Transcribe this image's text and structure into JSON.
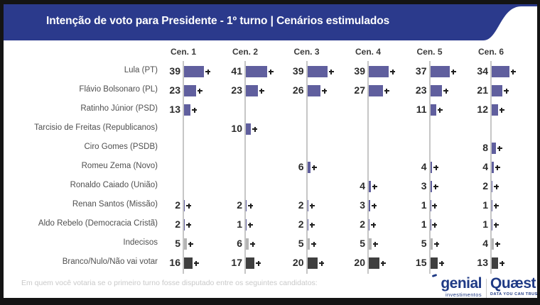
{
  "header": {
    "title": "Intenção de voto para Presidente - 1º turno | Cenários estimulados",
    "background_color": "#2b3a8c"
  },
  "chart_data": {
    "type": "bar",
    "orientation": "horizontal",
    "unit": "%",
    "columns": [
      "Cen. 1",
      "Cen. 2",
      "Cen. 3",
      "Cen. 4",
      "Cen. 5",
      "Cen. 6"
    ],
    "rows": [
      {
        "label": "Lula (PT)",
        "values": [
          39,
          41,
          39,
          39,
          37,
          34
        ],
        "color": "#605f9e"
      },
      {
        "label": "Flávio Bolsonaro (PL)",
        "values": [
          23,
          23,
          26,
          27,
          23,
          21
        ],
        "color": "#605f9e"
      },
      {
        "label": "Ratinho Júnior (PSD)",
        "values": [
          13,
          null,
          null,
          null,
          11,
          12
        ],
        "color": "#605f9e"
      },
      {
        "label": "Tarcisio de Freitas (Republicanos)",
        "values": [
          null,
          10,
          null,
          null,
          null,
          null
        ],
        "color": "#605f9e"
      },
      {
        "label": "Ciro Gomes (PSDB)",
        "values": [
          null,
          null,
          null,
          null,
          null,
          8
        ],
        "color": "#605f9e"
      },
      {
        "label": "Romeu Zema (Novo)",
        "values": [
          null,
          null,
          6,
          null,
          4,
          4
        ],
        "color": "#605f9e"
      },
      {
        "label": "Ronaldo Caiado (União)",
        "values": [
          null,
          null,
          null,
          4,
          3,
          2
        ],
        "color": "#605f9e"
      },
      {
        "label": "Renan Santos (Missão)",
        "values": [
          2,
          2,
          2,
          3,
          1,
          1
        ],
        "color": "#605f9e"
      },
      {
        "label": "Aldo Rebelo (Democracia Cristã)",
        "values": [
          2,
          1,
          2,
          2,
          1,
          1
        ],
        "color": "#605f9e"
      },
      {
        "label": "Indecisos",
        "values": [
          5,
          6,
          5,
          5,
          5,
          4
        ],
        "color": "#b4b4b4"
      },
      {
        "label": "Branco/Nulo/Não vai votar",
        "values": [
          16,
          17,
          20,
          20,
          15,
          13
        ],
        "color": "#3f3f3f"
      }
    ],
    "axis_color": "#c6c6c6",
    "error_marker_color": "#1f1f1f",
    "legend_position": "none",
    "grid": "vertical-baselines-only"
  },
  "footer": {
    "question": "Em quem você votaria se o primeiro turno fosse disputado entre os seguintes candidatos:",
    "logos": {
      "genial_name": "genial",
      "genial_sub": "investimentos",
      "quaest_name": "Quæst",
      "quaest_tagline": "DATA YOU CAN TRUST"
    },
    "brand_color": "#1f3a85"
  }
}
